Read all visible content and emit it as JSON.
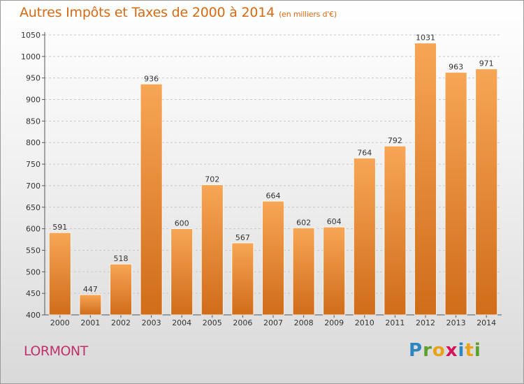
{
  "title": "Autres Impôts et Taxes de 2000 à 2014",
  "unit": "(en milliers d'€)",
  "commune": "LORMONT",
  "logo": {
    "letters": [
      "P",
      "r",
      "o",
      "x",
      "i",
      "t",
      "i"
    ],
    "colors": [
      "#2e86c1",
      "#5aa02c",
      "#e8a317",
      "#d4145a",
      "#2e86c1",
      "#e8a317",
      "#5aa02c"
    ]
  },
  "colors": {
    "bar": "#f5a04b",
    "bar_dark": "#d06c1a",
    "title": "#d66a12",
    "commune": "#c0306b"
  },
  "chart_data": {
    "type": "bar",
    "title": "Autres Impôts et Taxes de 2000 à 2014",
    "categories": [
      "2000",
      "2001",
      "2002",
      "2003",
      "2004",
      "2005",
      "2006",
      "2007",
      "2008",
      "2009",
      "2010",
      "2011",
      "2012",
      "2013",
      "2014"
    ],
    "values": [
      591,
      447,
      518,
      936,
      600,
      702,
      567,
      664,
      602,
      604,
      764,
      792,
      1031,
      963,
      971
    ],
    "ylim": [
      400,
      1050
    ],
    "yticks": [
      400,
      450,
      500,
      550,
      600,
      650,
      700,
      750,
      800,
      850,
      900,
      950,
      1000,
      1050
    ],
    "grid": true
  }
}
